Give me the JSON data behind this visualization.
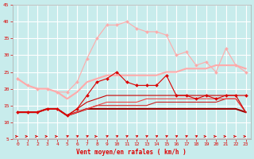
{
  "x": [
    0,
    1,
    2,
    3,
    4,
    5,
    6,
    7,
    8,
    9,
    10,
    11,
    12,
    13,
    14,
    15,
    16,
    17,
    18,
    19,
    20,
    21,
    22,
    23
  ],
  "background_color": "#c8ecec",
  "grid_color": "#ffffff",
  "xlabel": "Vent moyen/en rafales ( km/h )",
  "xlabel_color": "#dd0000",
  "tick_color": "#dd0000",
  "lines": [
    {
      "y": [
        23,
        21,
        20,
        20,
        19,
        19,
        22,
        29,
        35,
        39,
        39,
        40,
        38,
        37,
        37,
        36,
        30,
        31,
        27,
        28,
        25,
        32,
        27,
        25
      ],
      "color": "#ffaaaa",
      "lw": 0.8,
      "marker": "D",
      "ms": 2.0,
      "zorder": 2
    },
    {
      "y": [
        23,
        21,
        20,
        20,
        19,
        17,
        19,
        22,
        23,
        24,
        24,
        24,
        24,
        24,
        24,
        25,
        25,
        26,
        26,
        26,
        27,
        27,
        27,
        26
      ],
      "color": "#ffaaaa",
      "lw": 1.5,
      "marker": null,
      "ms": 0,
      "zorder": 2
    },
    {
      "y": [
        13,
        13,
        13,
        14,
        14,
        12,
        14,
        18,
        22,
        23,
        25,
        22,
        21,
        21,
        21,
        24,
        18,
        18,
        17,
        18,
        17,
        18,
        18,
        18
      ],
      "color": "#dd0000",
      "lw": 0.8,
      "marker": "D",
      "ms": 2.0,
      "zorder": 5
    },
    {
      "y": [
        13,
        13,
        13,
        14,
        14,
        12,
        13,
        14,
        14,
        14,
        14,
        14,
        14,
        14,
        14,
        14,
        14,
        14,
        14,
        14,
        14,
        14,
        14,
        13
      ],
      "color": "#990000",
      "lw": 1.5,
      "marker": null,
      "ms": 0,
      "zorder": 3
    },
    {
      "y": [
        13,
        13,
        13,
        14,
        14,
        12,
        13,
        14,
        15,
        15,
        15,
        15,
        15,
        15,
        16,
        16,
        16,
        16,
        16,
        16,
        16,
        17,
        17,
        13
      ],
      "color": "#cc2222",
      "lw": 0.8,
      "marker": null,
      "ms": 0,
      "zorder": 3
    },
    {
      "y": [
        13,
        13,
        13,
        14,
        14,
        12,
        13,
        14,
        15,
        16,
        16,
        16,
        16,
        17,
        17,
        17,
        17,
        17,
        17,
        17,
        17,
        17,
        17,
        13
      ],
      "color": "#ee4444",
      "lw": 0.8,
      "marker": null,
      "ms": 0,
      "zorder": 3
    },
    {
      "y": [
        13,
        13,
        13,
        14,
        14,
        12,
        14,
        16,
        17,
        18,
        18,
        18,
        18,
        18,
        18,
        18,
        18,
        18,
        18,
        18,
        18,
        18,
        18,
        13
      ],
      "color": "#cc0000",
      "lw": 0.8,
      "marker": null,
      "ms": 0,
      "zorder": 3
    }
  ],
  "ylim": [
    5,
    45
  ],
  "yticks": [
    5,
    10,
    15,
    20,
    25,
    30,
    35,
    40,
    45
  ],
  "xlim": [
    -0.5,
    23.5
  ],
  "wind_arrows": [
    0,
    1,
    2,
    3,
    4,
    5,
    6,
    7,
    8,
    9,
    10,
    11,
    12,
    13,
    14,
    15,
    16,
    17,
    18,
    19,
    20,
    21,
    22,
    23
  ],
  "arrow_dirs_deg": [
    0,
    0,
    0,
    0,
    0,
    45,
    45,
    45,
    0,
    45,
    45,
    45,
    45,
    45,
    45,
    45,
    45,
    45,
    45,
    0,
    0,
    0,
    0,
    0
  ]
}
